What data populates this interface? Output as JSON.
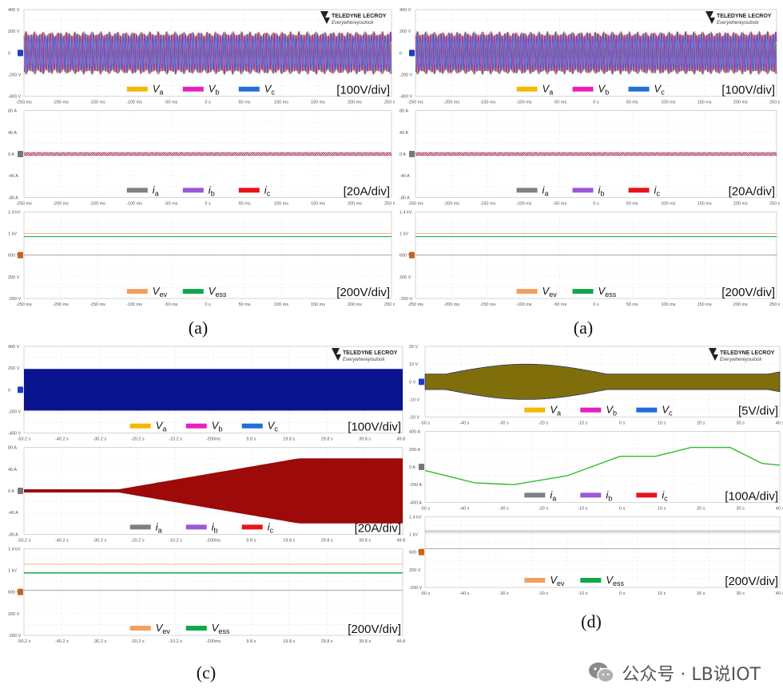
{
  "brand": {
    "name": "TELEDYNE LECROY",
    "tagline": "Everywhereyoulook"
  },
  "colors": {
    "Va": "#f5b800",
    "Vb": "#e61fbf",
    "Vc": "#1f6fd6",
    "ia": "#808080",
    "ib": "#9b59d6",
    "ic": "#e8141a",
    "Vev": "#f0a060",
    "Vess": "#10a84a",
    "grid": "#cfcfcf",
    "axis": "#666666",
    "dark_blue": "#0a148e",
    "olive": "#7f6e0a",
    "dark_red": "#9c0a0a",
    "green": "#2dbd2d"
  },
  "figures": [
    {
      "id": "a1",
      "caption": "(a)",
      "xticks": [
        "-250 ms",
        "-200 ms",
        "-150 ms",
        "-100 ms",
        "-50 ms",
        "0 s",
        "50 ms",
        "100 ms",
        "150 ms",
        "200 ms",
        "250 ms"
      ],
      "panels": [
        {
          "kind": "voltage",
          "scale": "[100V/div]",
          "yticks": [
            "400 V",
            "200 V",
            "0",
            "-200 V",
            "-400 V"
          ],
          "pattern": "three_phase_steady"
        },
        {
          "kind": "current",
          "scale": "[20A/div]",
          "yticks": [
            "80 A",
            "40 A",
            "0 A",
            "-40 A",
            "-80 A"
          ],
          "pattern": "small_ripple"
        },
        {
          "kind": "dc",
          "scale": "[200V/div]",
          "yticks": [
            "1.4 kV",
            "1 kV",
            "600 V",
            "200 V",
            "-200 V"
          ],
          "pattern": "dc_flat"
        }
      ]
    },
    {
      "id": "a2",
      "caption": "(a)",
      "xticks": [
        "-250 ms",
        "-200 ms",
        "-150 ms",
        "-100 ms",
        "-50 ms",
        "0 s",
        "50 ms",
        "100 ms",
        "150 ms",
        "200 ms",
        "250 ms"
      ],
      "panels": [
        {
          "kind": "voltage",
          "scale": "[100V/div]",
          "yticks": [
            "400 V",
            "200 V",
            "0",
            "-200 V",
            "-400 V"
          ],
          "pattern": "three_phase_steady"
        },
        {
          "kind": "current",
          "scale": "[20A/div]",
          "yticks": [
            "80 A",
            "40 A",
            "0 A",
            "-40 A",
            "-80 A"
          ],
          "pattern": "small_ripple"
        },
        {
          "kind": "dc",
          "scale": "[200V/div]",
          "yticks": [
            "1.4 kV",
            "1 kV",
            "600 V",
            "200 V",
            "-200 V"
          ],
          "pattern": "dc_flat"
        }
      ]
    },
    {
      "id": "c",
      "caption": "(c)",
      "xticks": [
        "-50.2 s",
        "-40.2 s",
        "-30.2 s",
        "-20.2 s",
        "-10.2 s",
        "-200ms",
        "9.8 s",
        "19.8 s",
        "29.8 s",
        "39.8 s",
        "49.8 s"
      ],
      "panels": [
        {
          "kind": "voltage",
          "scale": "[100V/div]",
          "yticks": [
            "400 V",
            "200 V",
            "0",
            "-200 V",
            "-400 V"
          ],
          "pattern": "dense_blue"
        },
        {
          "kind": "current",
          "scale": "[20A/div]",
          "yticks": [
            "80 A",
            "40 A",
            "0 A",
            "-40 A",
            "-80 A"
          ],
          "pattern": "ramp_red"
        },
        {
          "kind": "dc",
          "scale": "[200V/div]",
          "yticks": [
            "1.4 kV",
            "1 kV",
            "600 V",
            "200 V",
            "-200 V"
          ],
          "pattern": "dc_two"
        }
      ]
    },
    {
      "id": "d",
      "caption": "(d)",
      "xticks": [
        "-50 s",
        "-40 s",
        "-30 s",
        "-20 s",
        "-10 s",
        "0 s",
        "10 s",
        "20 s",
        "30 s",
        "40 s"
      ],
      "panels": [
        {
          "kind": "voltage",
          "scale": "[5V/div]",
          "yticks": [
            "20 V",
            "10 V",
            "0 V",
            "-10 V",
            "-20 V"
          ],
          "pattern": "olive_envelope"
        },
        {
          "kind": "current",
          "scale": "[100A/div]",
          "yticks": [
            "400 A",
            "200 A",
            "0 A",
            "-200 A",
            "-400 A"
          ],
          "pattern": "green_current"
        },
        {
          "kind": "dc",
          "scale": "[200V/div]",
          "yticks": [
            "1.4 kV",
            "1 kV",
            "600 V",
            "200 V",
            "-200 V"
          ],
          "pattern": "dc_grey"
        }
      ]
    }
  ],
  "legends": {
    "voltage": [
      {
        "key": "Va",
        "sym": "V",
        "sub": "a"
      },
      {
        "key": "Vb",
        "sym": "V",
        "sub": "b"
      },
      {
        "key": "Vc",
        "sym": "V",
        "sub": "c"
      }
    ],
    "current": [
      {
        "key": "ia",
        "sym": "i",
        "sub": "a"
      },
      {
        "key": "ib",
        "sym": "i",
        "sub": "b"
      },
      {
        "key": "ic",
        "sym": "i",
        "sub": "c"
      }
    ],
    "dc": [
      {
        "key": "Vev",
        "sym": "V",
        "sub": "ev"
      },
      {
        "key": "Vess",
        "sym": "V",
        "sub": "ess"
      }
    ]
  },
  "watermark": {
    "text": "公众号 · LB说IOT",
    "icon": "wechat-icon"
  },
  "chart_data": [
    {
      "type": "line",
      "title": "",
      "panels": [
        {
          "series": [
            {
              "name": "Va",
              "values": []
            },
            {
              "name": "Vb",
              "values": []
            },
            {
              "name": "Vc",
              "values": []
            }
          ],
          "ylabel": "[100V/div]",
          "ylim": [
            -400,
            400
          ]
        },
        {
          "series": [
            {
              "name": "ia",
              "values": []
            },
            {
              "name": "ib",
              "values": []
            },
            {
              "name": "ic",
              "values": []
            }
          ],
          "ylabel": "[20A/div]",
          "ylim": [
            -80,
            80
          ]
        },
        {
          "series": [
            {
              "name": "Vev",
              "values": []
            },
            {
              "name": "Vess",
              "values": []
            }
          ],
          "ylabel": "[200V/div]",
          "ylim": [
            -200,
            1400
          ]
        }
      ],
      "xlim": [
        -250,
        250
      ]
    }
  ]
}
